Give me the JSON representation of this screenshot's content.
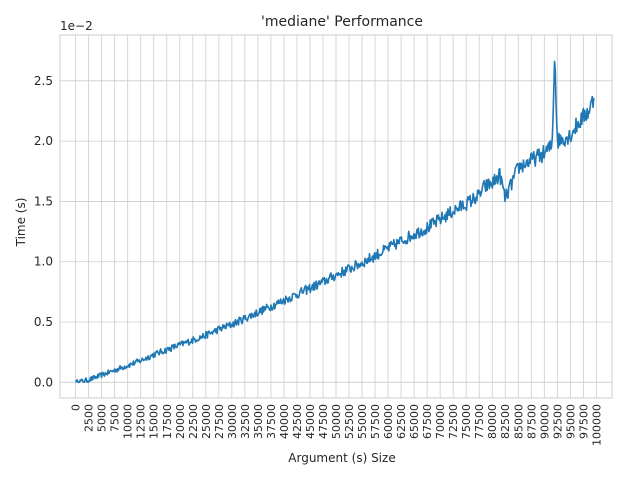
{
  "chart_data": {
    "type": "line",
    "title": "'mediane' Performance",
    "xlabel": "Argument (s) Size",
    "ylabel": "Time (s)",
    "y_offset_label": "1e−2",
    "xlim": [
      -3000,
      103000
    ],
    "ylim": [
      -0.0013,
      0.0288
    ],
    "grid": true,
    "x_ticks": [
      0,
      2500,
      5000,
      7500,
      10000,
      12500,
      15000,
      17500,
      20000,
      22500,
      25000,
      27500,
      30000,
      32500,
      35000,
      37500,
      40000,
      42500,
      45000,
      47500,
      50000,
      52500,
      55000,
      57500,
      60000,
      62500,
      65000,
      67500,
      70000,
      72500,
      75000,
      77500,
      80000,
      82500,
      85000,
      87500,
      90000,
      92500,
      95000,
      97500,
      100000
    ],
    "y_ticks": [
      0.0,
      0.5,
      1.0,
      1.5,
      2.0,
      2.5
    ],
    "series": [
      {
        "color": "#1f77b4",
        "x": [
          0,
          2500,
          5000,
          7500,
          10000,
          12500,
          15000,
          17500,
          20000,
          22500,
          25000,
          27500,
          30000,
          32500,
          35000,
          37500,
          40000,
          42500,
          45000,
          47500,
          50000,
          52500,
          55000,
          57500,
          60000,
          62500,
          65000,
          67500,
          70000,
          72500,
          75000,
          77500,
          78500,
          80000,
          81500,
          82500,
          85000,
          87500,
          90000,
          91500,
          92000,
          92500,
          95000,
          96500,
          97500,
          98500,
          99500
        ],
        "y": [
          0.0,
          0.0002,
          0.0006,
          0.001,
          0.0014,
          0.0018,
          0.0023,
          0.0027,
          0.0031,
          0.0035,
          0.0039,
          0.0044,
          0.0048,
          0.0053,
          0.0058,
          0.0063,
          0.0068,
          0.0073,
          0.0078,
          0.0083,
          0.0089,
          0.0094,
          0.0099,
          0.0105,
          0.0111,
          0.0117,
          0.0123,
          0.0128,
          0.0135,
          0.0142,
          0.0148,
          0.0155,
          0.0162,
          0.0165,
          0.0172,
          0.0152,
          0.0178,
          0.0184,
          0.019,
          0.0196,
          0.0275,
          0.02,
          0.0205,
          0.0215,
          0.022,
          0.0225,
          0.0235
        ]
      }
    ]
  }
}
